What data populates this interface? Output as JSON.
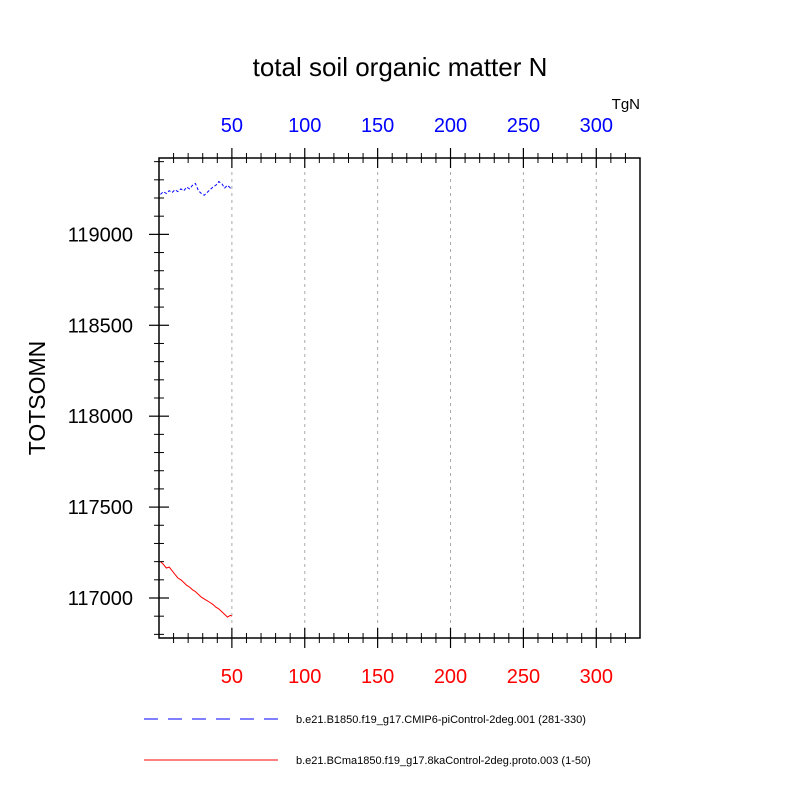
{
  "chart_data": {
    "type": "line",
    "title": "total soil organic matter N",
    "units": "TgN",
    "ylabel": "TOTSOMN",
    "xlabel": "",
    "xlim": [
      0,
      330
    ],
    "ylim": [
      116780,
      119420
    ],
    "x_ticks_bottom": [
      50,
      100,
      150,
      200,
      250,
      300
    ],
    "x_ticks_top": [
      50,
      100,
      150,
      200,
      250,
      300
    ],
    "y_ticks": [
      117000,
      117500,
      118000,
      118500,
      119000
    ],
    "grid": "vertical-dashed",
    "colors": {
      "top_axis": "#0000ff",
      "bottom_axis": "#ff0000",
      "series_blue": "#0000ff",
      "series_red": "#ff0000",
      "grid": "#aaaaaa"
    },
    "series": [
      {
        "name": "b.e21.B1850.f19_g17.CMIP6-piControl-2deg.001 (281-330)",
        "color": "#0000ff",
        "dash": "dashed",
        "x": [
          1,
          3,
          5,
          7,
          9,
          11,
          13,
          15,
          17,
          19,
          21,
          23,
          25,
          27,
          29,
          31,
          33,
          35,
          37,
          39,
          41,
          43,
          45,
          47,
          49,
          50
        ],
        "y": [
          119220,
          119235,
          119225,
          119240,
          119230,
          119245,
          119235,
          119250,
          119240,
          119260,
          119250,
          119270,
          119280,
          119240,
          119225,
          119215,
          119230,
          119245,
          119260,
          119270,
          119290,
          119280,
          119255,
          119270,
          119255,
          119260
        ]
      },
      {
        "name": "b.e21.BCma1850.f19_g17.8kaControl-2deg.proto.003 (1-50)",
        "color": "#ff0000",
        "dash": "solid",
        "x": [
          1,
          3,
          5,
          7,
          9,
          11,
          13,
          15,
          17,
          19,
          21,
          23,
          25,
          27,
          29,
          31,
          33,
          35,
          37,
          39,
          41,
          43,
          45,
          47,
          49,
          50
        ],
        "y": [
          117200,
          117185,
          117165,
          117170,
          117150,
          117130,
          117110,
          117100,
          117085,
          117070,
          117060,
          117045,
          117035,
          117020,
          117005,
          116995,
          116985,
          116975,
          116965,
          116950,
          116940,
          116925,
          116910,
          116895,
          116905,
          116900
        ]
      }
    ],
    "legend_position": "bottom"
  }
}
